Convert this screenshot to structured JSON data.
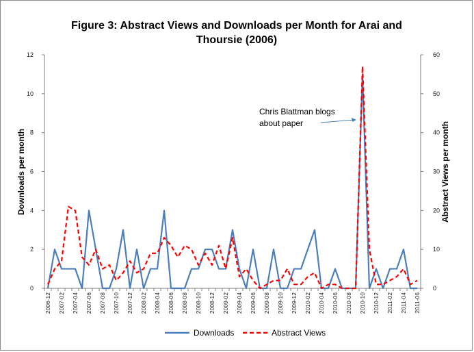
{
  "chart_data": {
    "type": "line",
    "title_line1": "Figure 3: Abstract Views and Downloads per Month for Arai and",
    "title_line2": "Thoursie (2006)",
    "xlabel": "",
    "ylabel_left": "Downloads per month",
    "ylabel_right": "Abstract Views per month",
    "ylim_left": [
      0,
      12
    ],
    "ylim_right": [
      0,
      60
    ],
    "yticks_left": [
      "0",
      "2",
      "4",
      "6",
      "8",
      "10",
      "12"
    ],
    "yticks_right": [
      "0",
      "10",
      "20",
      "30",
      "40",
      "50",
      "60"
    ],
    "grid": false,
    "legend_position": "bottom",
    "x": [
      "2006-12",
      "2007-01",
      "2007-02",
      "2007-03",
      "2007-04",
      "2007-05",
      "2007-06",
      "2007-07",
      "2007-08",
      "2007-09",
      "2007-10",
      "2007-11",
      "2007-12",
      "2008-01",
      "2008-02",
      "2008-03",
      "2008-04",
      "2008-05",
      "2008-06",
      "2008-07",
      "2008-08",
      "2008-09",
      "2008-10",
      "2008-11",
      "2008-12",
      "2009-01",
      "2009-02",
      "2009-03",
      "2009-04",
      "2009-05",
      "2009-06",
      "2009-07",
      "2009-08",
      "2009-09",
      "2009-10",
      "2009-11",
      "2009-12",
      "2010-01",
      "2010-02",
      "2010-03",
      "2010-04",
      "2010-05",
      "2010-06",
      "2010-07",
      "2010-08",
      "2010-09",
      "2010-10",
      "2010-11",
      "2010-12",
      "2011-01",
      "2011-02",
      "2011-03",
      "2011-04",
      "2011-05",
      "2011-06"
    ],
    "xtick_labels": [
      "2006-12",
      "2007-02",
      "2007-04",
      "2007-06",
      "2007-08",
      "2007-10",
      "2007-12",
      "2008-02",
      "2008-04",
      "2008-06",
      "2008-08",
      "2008-10",
      "2008-12",
      "2009-02",
      "2009-04",
      "2009-06",
      "2009-08",
      "2009-10",
      "2009-12",
      "2010-02",
      "2010-04",
      "2010-06",
      "2010-08",
      "2010-10",
      "2010-12",
      "2011-02",
      "2011-04",
      "2011-06"
    ],
    "series": [
      {
        "name": "Downloads",
        "axis": "left",
        "color": "#4a7ebb",
        "style": "solid",
        "values": [
          0,
          2,
          1,
          1,
          1,
          0,
          4,
          2,
          0,
          0,
          1,
          3,
          0,
          2,
          0,
          1,
          1,
          4,
          0,
          0,
          0,
          1,
          1,
          2,
          2,
          1,
          1,
          3,
          1,
          0,
          2,
          0,
          0,
          2,
          0,
          0,
          1,
          1,
          2,
          3,
          0,
          0,
          1,
          0,
          0,
          0,
          11,
          0,
          1,
          0,
          1,
          1,
          2,
          0,
          0
        ]
      },
      {
        "name": "Abstract Views",
        "axis": "right",
        "color": "#ff0000",
        "style": "dashed",
        "values": [
          1,
          5,
          7,
          21,
          20,
          8,
          6,
          10,
          5,
          6,
          2,
          4,
          7,
          4,
          5,
          9,
          9,
          13,
          11,
          8,
          11,
          10,
          6,
          9,
          6,
          11,
          5,
          13,
          3,
          5,
          2,
          0,
          1,
          2,
          2,
          5,
          1,
          1,
          3,
          4,
          0,
          1,
          1,
          0,
          0,
          0,
          57,
          10,
          1,
          1,
          2,
          3,
          5,
          1,
          2
        ]
      }
    ],
    "annotation": {
      "line1": "Chris Blattman blogs",
      "line2": "about paper",
      "points_to": "2010-10"
    }
  },
  "legend": {
    "downloads_label": "Downloads",
    "views_label": "Abstract Views"
  }
}
